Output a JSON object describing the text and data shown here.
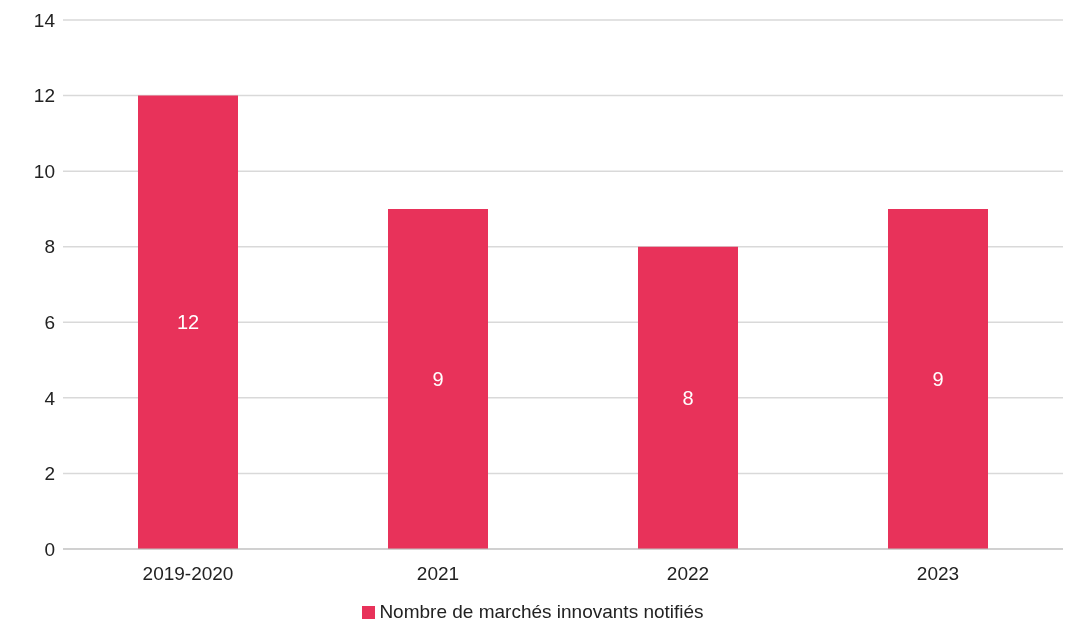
{
  "chart_data": {
    "type": "bar",
    "categories": [
      "2019-2020",
      "2021",
      "2022",
      "2023"
    ],
    "series": [
      {
        "name": "Nombre de marchés innovants notifiés",
        "color": "#e8325a",
        "values": [
          12,
          9,
          8,
          9
        ]
      }
    ],
    "ylim": [
      0,
      14
    ],
    "yticks": [
      0,
      2,
      4,
      6,
      8,
      10,
      12,
      14
    ],
    "grid": "y",
    "legend": "bottom",
    "data_labels": true
  }
}
